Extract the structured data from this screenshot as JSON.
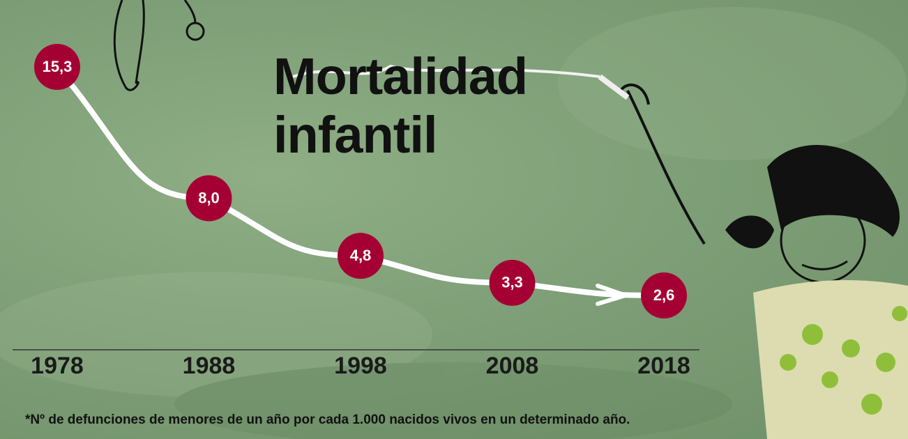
{
  "chart_data": {
    "type": "line",
    "title": "Mortalidad infantil",
    "x": [
      1978,
      1988,
      1998,
      2008,
      2018
    ],
    "values": [
      15.3,
      8.0,
      4.8,
      3.3,
      2.6
    ],
    "value_labels": [
      "15,3",
      "8,0",
      "4,8",
      "3,3",
      "2,6"
    ],
    "color": "#a50034",
    "footnote": "*Nº de defunciones de menores de un año por cada 1.000 nacidos vivos en un determinado año."
  }
}
